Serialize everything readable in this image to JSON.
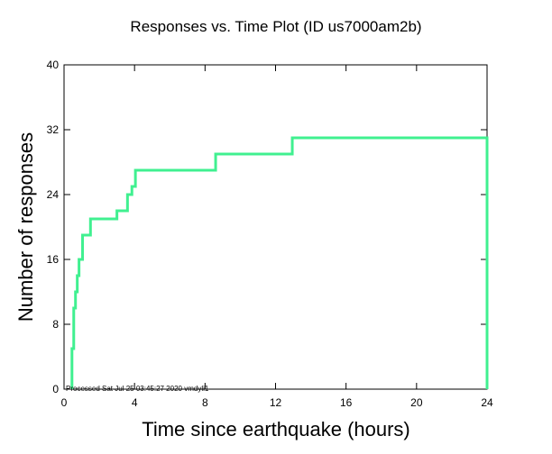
{
  "chart_data": {
    "type": "line",
    "title": "Responses vs. Time Plot (ID us7000am2b)",
    "xlabel": "Time since earthquake (hours)",
    "ylabel": "Number of responses",
    "xlim": [
      0,
      24
    ],
    "ylim": [
      0,
      40
    ],
    "x_ticks": [
      0,
      4,
      8,
      12,
      16,
      20,
      24
    ],
    "y_ticks": [
      0,
      8,
      16,
      24,
      32,
      40
    ],
    "grid": false,
    "line_color": "#40f090",
    "footnote": "Processed Sat Jul 25 03:45:27 2020 vmdyli1",
    "series": [
      {
        "step": "post",
        "points": [
          [
            0.45,
            0
          ],
          [
            0.45,
            5
          ],
          [
            0.55,
            5
          ],
          [
            0.55,
            10
          ],
          [
            0.65,
            10
          ],
          [
            0.65,
            12
          ],
          [
            0.75,
            12
          ],
          [
            0.75,
            14
          ],
          [
            0.85,
            14
          ],
          [
            0.85,
            16
          ],
          [
            1.05,
            16
          ],
          [
            1.05,
            19
          ],
          [
            1.5,
            19
          ],
          [
            1.5,
            21
          ],
          [
            3.0,
            21
          ],
          [
            3.0,
            22
          ],
          [
            3.6,
            22
          ],
          [
            3.6,
            24
          ],
          [
            3.85,
            24
          ],
          [
            3.85,
            25
          ],
          [
            4.05,
            25
          ],
          [
            4.05,
            27
          ],
          [
            8.6,
            27
          ],
          [
            8.6,
            29
          ],
          [
            12.95,
            29
          ],
          [
            12.95,
            31
          ],
          [
            24.0,
            31
          ],
          [
            24.0,
            0
          ]
        ]
      }
    ]
  }
}
